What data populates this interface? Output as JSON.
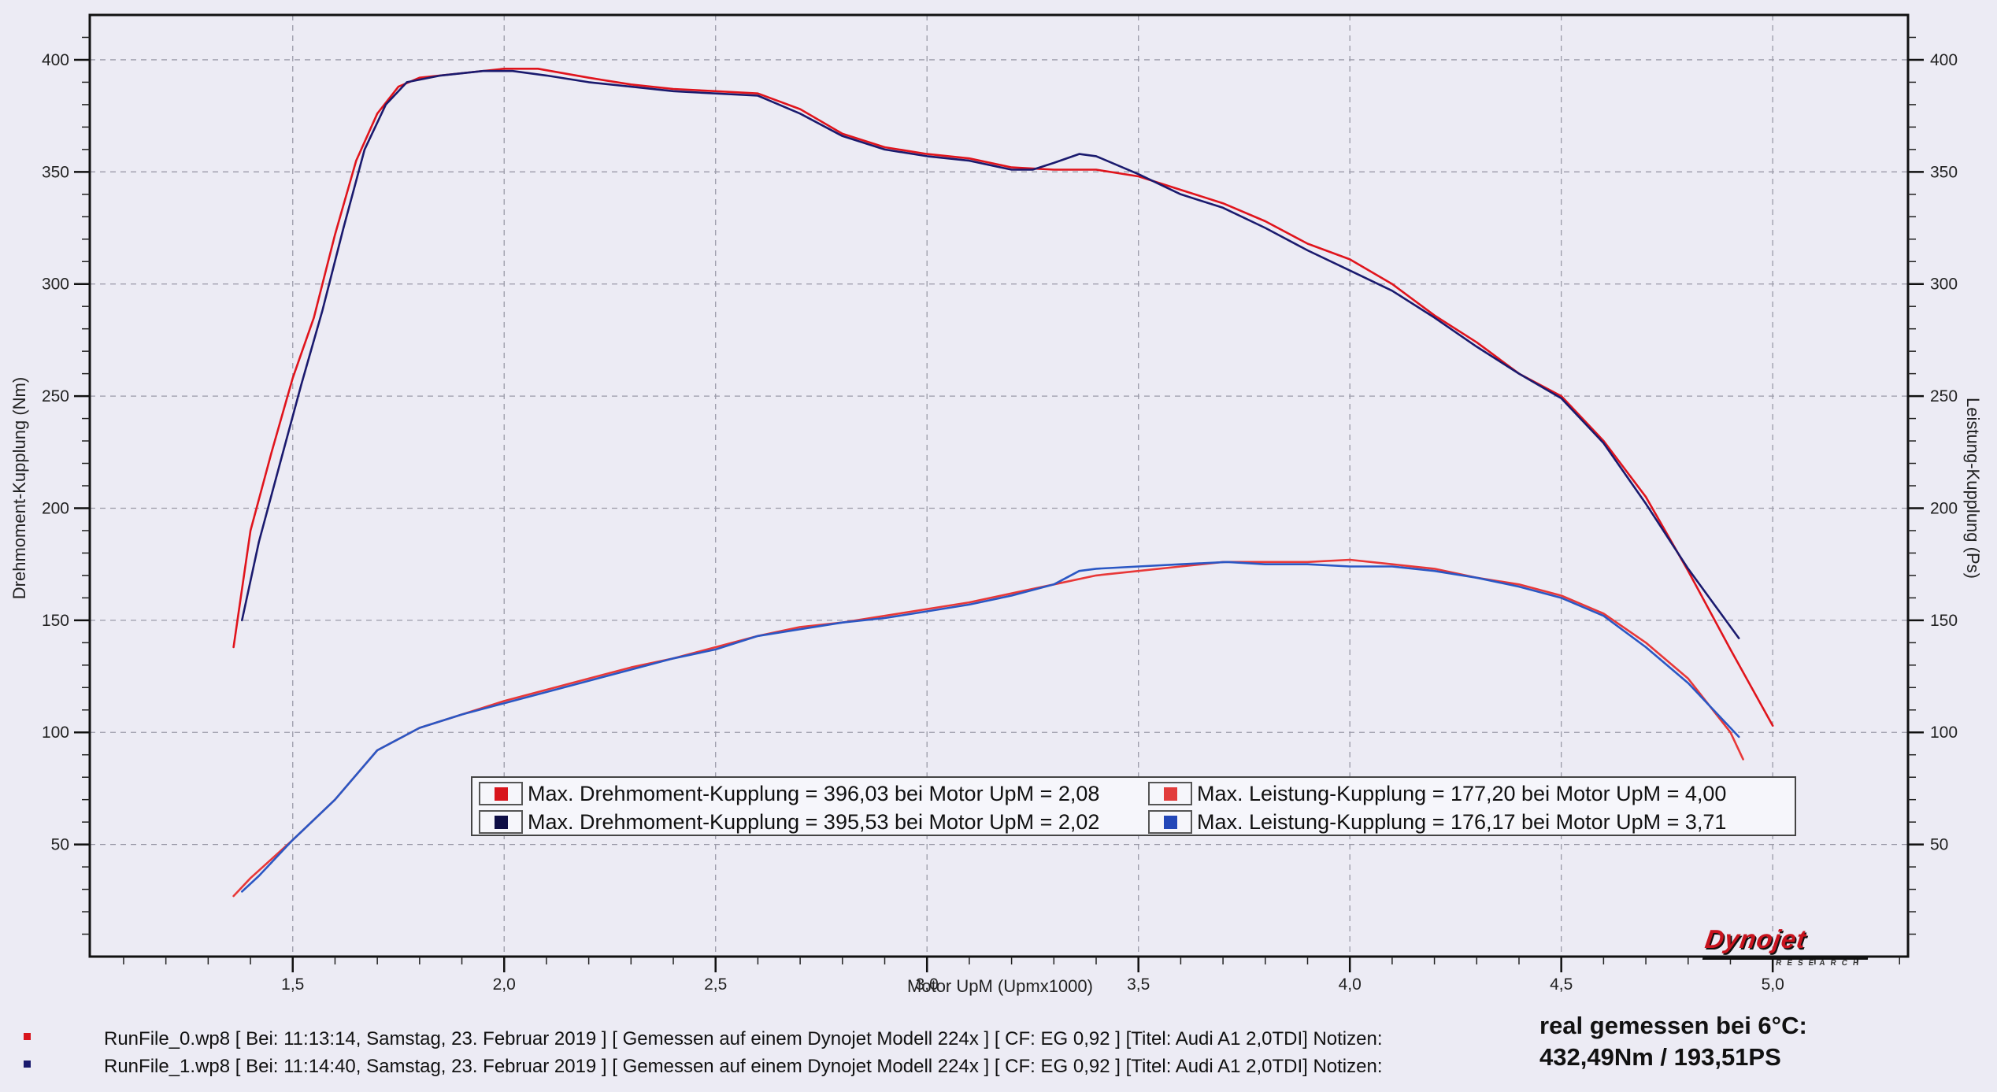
{
  "chart_data": {
    "type": "line",
    "xlabel": "Motor UpM (Upmx1000)",
    "ylabel_left": "Drehmoment-Kupplung (Nm)",
    "ylabel_right": "Leistung-Kupplung (Ps)",
    "xlim": [
      1.02,
      5.32
    ],
    "ylim": [
      0,
      420
    ],
    "x_ticks": [
      "1,5",
      "2,0",
      "2,5",
      "3,0",
      "3,5",
      "4,0",
      "4,5",
      "5,0"
    ],
    "y_ticks": [
      "50",
      "100",
      "150",
      "200",
      "250",
      "300",
      "350",
      "400"
    ],
    "grid": true,
    "series": [
      {
        "name": "Max. Drehmoment-Kupplung = 396,03 bei Motor UpM = 2,08",
        "color": "#e0141c",
        "points": [
          [
            1.36,
            138
          ],
          [
            1.4,
            190
          ],
          [
            1.45,
            225
          ],
          [
            1.5,
            258
          ],
          [
            1.55,
            285
          ],
          [
            1.6,
            322
          ],
          [
            1.65,
            355
          ],
          [
            1.7,
            376
          ],
          [
            1.75,
            388
          ],
          [
            1.8,
            392
          ],
          [
            1.9,
            394
          ],
          [
            2.0,
            396
          ],
          [
            2.08,
            396
          ],
          [
            2.2,
            392
          ],
          [
            2.3,
            389
          ],
          [
            2.4,
            387
          ],
          [
            2.5,
            386
          ],
          [
            2.6,
            385
          ],
          [
            2.7,
            378
          ],
          [
            2.8,
            367
          ],
          [
            2.9,
            361
          ],
          [
            3.0,
            358
          ],
          [
            3.1,
            356
          ],
          [
            3.2,
            352
          ],
          [
            3.3,
            351
          ],
          [
            3.4,
            351
          ],
          [
            3.5,
            348
          ],
          [
            3.6,
            342
          ],
          [
            3.7,
            336
          ],
          [
            3.8,
            328
          ],
          [
            3.9,
            318
          ],
          [
            4.0,
            311
          ],
          [
            4.1,
            300
          ],
          [
            4.2,
            286
          ],
          [
            4.3,
            274
          ],
          [
            4.4,
            260
          ],
          [
            4.5,
            250
          ],
          [
            4.6,
            230
          ],
          [
            4.7,
            205
          ],
          [
            4.8,
            172
          ],
          [
            4.9,
            137
          ],
          [
            5.0,
            103
          ]
        ]
      },
      {
        "name": "Max. Drehmoment-Kupplung = 395,53 bei Motor UpM = 2,02",
        "color": "#1a1a6e",
        "points": [
          [
            1.38,
            150
          ],
          [
            1.42,
            185
          ],
          [
            1.47,
            220
          ],
          [
            1.52,
            255
          ],
          [
            1.57,
            288
          ],
          [
            1.62,
            325
          ],
          [
            1.67,
            360
          ],
          [
            1.72,
            380
          ],
          [
            1.77,
            390
          ],
          [
            1.85,
            393
          ],
          [
            1.95,
            395
          ],
          [
            2.02,
            395
          ],
          [
            2.1,
            393
          ],
          [
            2.2,
            390
          ],
          [
            2.3,
            388
          ],
          [
            2.4,
            386
          ],
          [
            2.5,
            385
          ],
          [
            2.6,
            384
          ],
          [
            2.7,
            376
          ],
          [
            2.8,
            366
          ],
          [
            2.9,
            360
          ],
          [
            3.0,
            357
          ],
          [
            3.1,
            355
          ],
          [
            3.2,
            351
          ],
          [
            3.25,
            351
          ],
          [
            3.3,
            354
          ],
          [
            3.36,
            358
          ],
          [
            3.4,
            357
          ],
          [
            3.5,
            349
          ],
          [
            3.6,
            340
          ],
          [
            3.7,
            334
          ],
          [
            3.8,
            325
          ],
          [
            3.9,
            315
          ],
          [
            4.0,
            306
          ],
          [
            4.1,
            297
          ],
          [
            4.2,
            285
          ],
          [
            4.3,
            272
          ],
          [
            4.4,
            260
          ],
          [
            4.5,
            249
          ],
          [
            4.6,
            229
          ],
          [
            4.7,
            202
          ],
          [
            4.8,
            173
          ],
          [
            4.92,
            142
          ]
        ]
      },
      {
        "name": "Max. Leistung-Kupplung = 177,20 bei Motor UpM = 4,00",
        "color": "#e83838",
        "points": [
          [
            1.36,
            27
          ],
          [
            1.4,
            35
          ],
          [
            1.5,
            52
          ],
          [
            1.6,
            70
          ],
          [
            1.7,
            92
          ],
          [
            1.8,
            102
          ],
          [
            1.9,
            108
          ],
          [
            2.0,
            114
          ],
          [
            2.1,
            119
          ],
          [
            2.2,
            124
          ],
          [
            2.3,
            129
          ],
          [
            2.4,
            133
          ],
          [
            2.5,
            138
          ],
          [
            2.6,
            143
          ],
          [
            2.7,
            147
          ],
          [
            2.8,
            149
          ],
          [
            2.9,
            152
          ],
          [
            3.0,
            155
          ],
          [
            3.1,
            158
          ],
          [
            3.2,
            162
          ],
          [
            3.3,
            166
          ],
          [
            3.4,
            170
          ],
          [
            3.5,
            172
          ],
          [
            3.6,
            174
          ],
          [
            3.7,
            176
          ],
          [
            3.8,
            176
          ],
          [
            3.9,
            176
          ],
          [
            4.0,
            177
          ],
          [
            4.1,
            175
          ],
          [
            4.2,
            173
          ],
          [
            4.3,
            169
          ],
          [
            4.4,
            166
          ],
          [
            4.5,
            161
          ],
          [
            4.6,
            153
          ],
          [
            4.7,
            140
          ],
          [
            4.8,
            124
          ],
          [
            4.9,
            100
          ],
          [
            4.93,
            88
          ]
        ]
      },
      {
        "name": "Max. Leistung-Kupplung = 176,17 bei Motor UpM = 3,71",
        "color": "#2a57c4",
        "points": [
          [
            1.38,
            29
          ],
          [
            1.42,
            36
          ],
          [
            1.5,
            52
          ],
          [
            1.6,
            70
          ],
          [
            1.7,
            92
          ],
          [
            1.8,
            102
          ],
          [
            1.9,
            108
          ],
          [
            2.0,
            113
          ],
          [
            2.1,
            118
          ],
          [
            2.2,
            123
          ],
          [
            2.3,
            128
          ],
          [
            2.4,
            133
          ],
          [
            2.5,
            137
          ],
          [
            2.6,
            143
          ],
          [
            2.7,
            146
          ],
          [
            2.8,
            149
          ],
          [
            2.9,
            151
          ],
          [
            3.0,
            154
          ],
          [
            3.1,
            157
          ],
          [
            3.2,
            161
          ],
          [
            3.3,
            166
          ],
          [
            3.36,
            172
          ],
          [
            3.4,
            173
          ],
          [
            3.5,
            174
          ],
          [
            3.6,
            175
          ],
          [
            3.71,
            176
          ],
          [
            3.8,
            175
          ],
          [
            3.9,
            175
          ],
          [
            4.0,
            174
          ],
          [
            4.1,
            174
          ],
          [
            4.2,
            172
          ],
          [
            4.3,
            169
          ],
          [
            4.4,
            165
          ],
          [
            4.5,
            160
          ],
          [
            4.6,
            152
          ],
          [
            4.7,
            138
          ],
          [
            4.8,
            122
          ],
          [
            4.92,
            98
          ]
        ]
      }
    ]
  },
  "legend": {
    "items": [
      {
        "label": "Max. Drehmoment-Kupplung = 396,03 bei Motor UpM = 2,08",
        "color": "#d8141c"
      },
      {
        "label": "Max. Drehmoment-Kupplung = 395,53 bei Motor UpM = 2,02",
        "color": "#0d0d45"
      },
      {
        "label": "Max. Leistung-Kupplung = 177,20 bei Motor UpM = 4,00",
        "color": "#e23c3c"
      },
      {
        "label": "Max. Leistung-Kupplung = 176,17 bei Motor UpM = 3,71",
        "color": "#2347b8"
      }
    ]
  },
  "logo": {
    "name": "Dynojet",
    "subtitle": "RESEARCH"
  },
  "footer": {
    "run0": "RunFile_0.wp8 [ Bei: 11:13:14, Samstag, 23. Februar 2019 ] [ Gemessen auf einem Dynojet Modell 224x ] [ CF: EG 0,92 ] [Titel: Audi A1 2,0TDI]  Notizen:",
    "run1": "RunFile_1.wp8 [ Bei: 11:14:40, Samstag, 23. Februar 2019 ] [ Gemessen auf einem Dynojet Modell 224x ] [ CF: EG 0,92 ] [Titel: Audi A1 2,0TDI]  Notizen:",
    "run0_color": "#d8141c",
    "run1_color": "#1a1a6e"
  },
  "note": {
    "line1": "real gemessen bei 6°C:",
    "line2": "432,49Nm / 193,51PS"
  }
}
